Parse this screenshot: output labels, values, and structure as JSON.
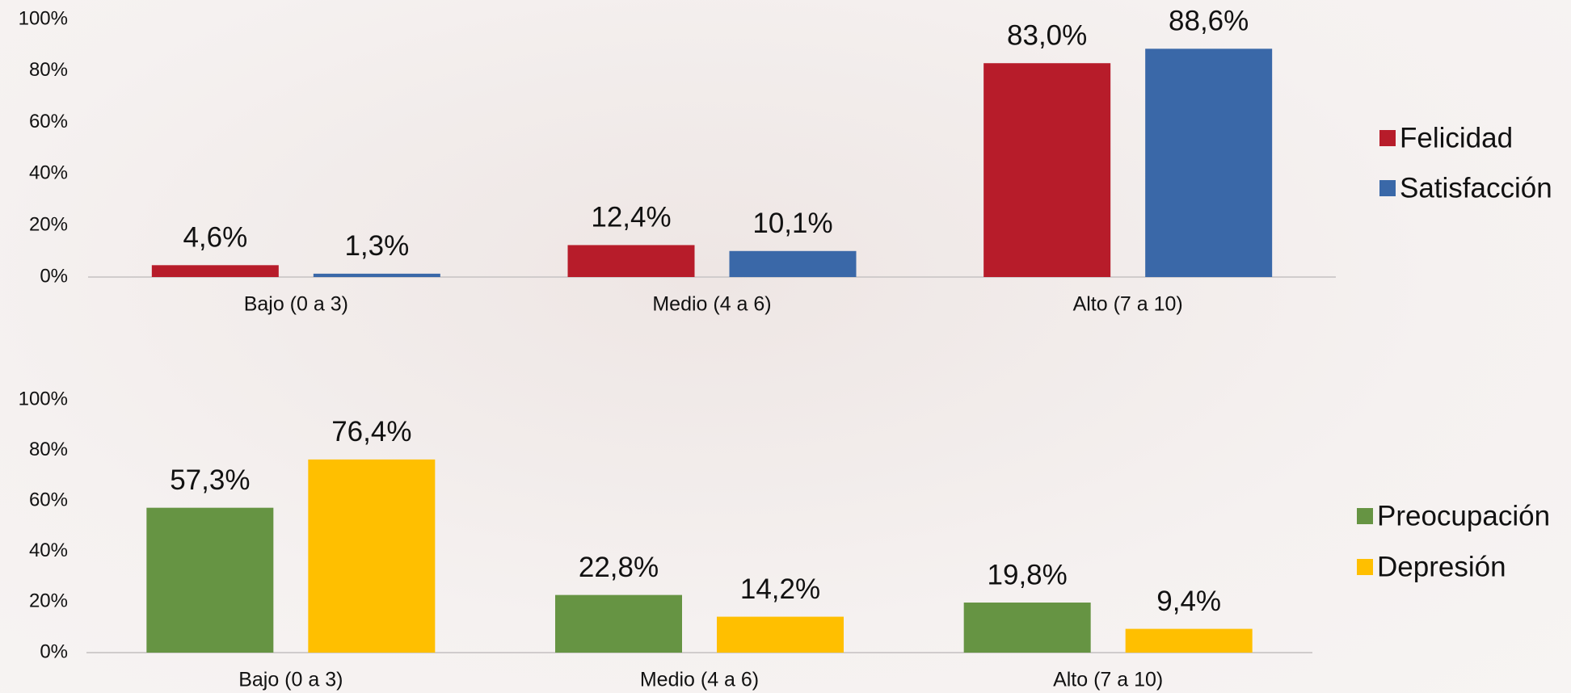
{
  "chart_data": [
    {
      "type": "bar",
      "categories": [
        "Bajo (0 a 3)",
        "Medio (4 a 6)",
        "Alto (7 a 10)"
      ],
      "series": [
        {
          "name": "Felicidad",
          "color": "#b71c2a",
          "values": [
            4.6,
            12.4,
            83.0
          ],
          "value_labels": [
            "4,6%",
            "12,4%",
            "83,0%"
          ]
        },
        {
          "name": "Satisfacción",
          "color": "#3a68a8",
          "values": [
            1.3,
            10.1,
            88.6
          ],
          "value_labels": [
            "1,3%",
            "10,1%",
            "88,6%"
          ]
        }
      ],
      "ylim": [
        0,
        100
      ],
      "yticks": [
        {
          "value": 0,
          "label": "0%"
        },
        {
          "value": 20,
          "label": "20%"
        },
        {
          "value": 40,
          "label": "40%"
        },
        {
          "value": 60,
          "label": "60%"
        },
        {
          "value": 80,
          "label": "80%"
        },
        {
          "value": 100,
          "label": "100%"
        }
      ],
      "legend": "right"
    },
    {
      "type": "bar",
      "categories": [
        "Bajo (0 a 3)",
        "Medio (4 a 6)",
        "Alto (7 a 10)"
      ],
      "series": [
        {
          "name": "Preocupación",
          "color": "#669443",
          "values": [
            57.3,
            22.8,
            19.8
          ],
          "value_labels": [
            "57,3%",
            "22,8%",
            "19,8%"
          ]
        },
        {
          "name": "Depresión",
          "color": "#ffbf00",
          "values": [
            76.4,
            14.2,
            9.4
          ],
          "value_labels": [
            "76,4%",
            "14,2%",
            "9,4%"
          ]
        }
      ],
      "ylim": [
        0,
        100
      ],
      "yticks": [
        {
          "value": 0,
          "label": "0%"
        },
        {
          "value": 20,
          "label": "20%"
        },
        {
          "value": 40,
          "label": "40%"
        },
        {
          "value": 60,
          "label": "60%"
        },
        {
          "value": 80,
          "label": "80%"
        },
        {
          "value": 100,
          "label": "100%"
        }
      ],
      "legend": "right"
    }
  ]
}
